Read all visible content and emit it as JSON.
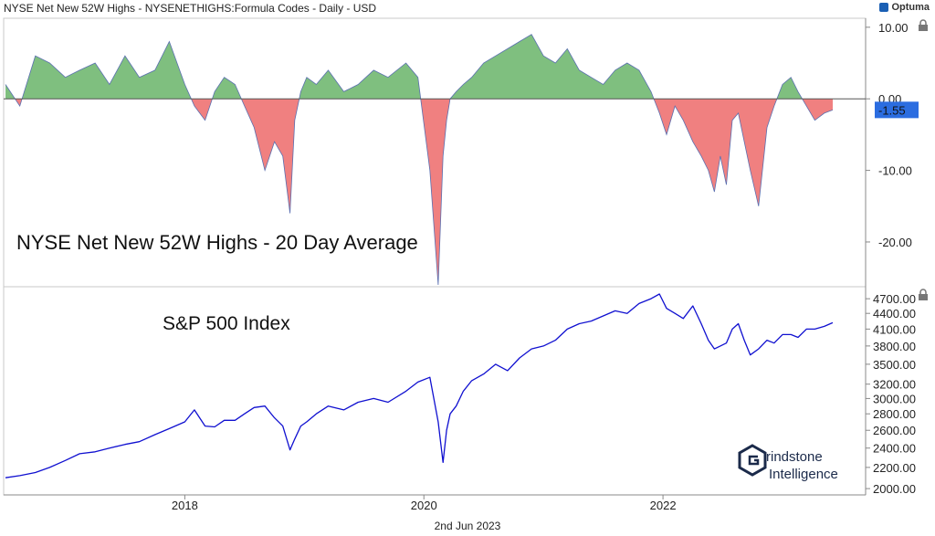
{
  "header": {
    "title": "NYSE Net New 52W Highs - NYSENETHIGHS:Formula Codes - Daily - USD",
    "brand": "Optuma"
  },
  "footer": {
    "date": "2nd Jun 2023"
  },
  "watermark": {
    "line1": "rindstone",
    "line2": "Intelligence"
  },
  "colors": {
    "positive_fill": "#7fbf7f",
    "negative_fill": "#f08080",
    "sp_line": "#1010d0",
    "last_value_bg": "#2b6de0"
  },
  "chart_data": [
    {
      "type": "area",
      "title": "NYSE Net New 52W Highs - 20 Day Average",
      "yticks": [
        "10.00",
        "0.00",
        "-10.00",
        "-20.00"
      ],
      "ytick_values": [
        10,
        0,
        -10,
        -20
      ],
      "ylim": [
        -26,
        11
      ],
      "last_value": "-1.55",
      "x": [
        2016.5,
        2016.62,
        2016.75,
        2016.87,
        2017.0,
        2017.12,
        2017.25,
        2017.37,
        2017.5,
        2017.62,
        2017.75,
        2017.87,
        2018.0,
        2018.08,
        2018.17,
        2018.25,
        2018.33,
        2018.42,
        2018.5,
        2018.58,
        2018.67,
        2018.75,
        2018.82,
        2018.88,
        2018.92,
        2018.97,
        2019.02,
        2019.1,
        2019.2,
        2019.33,
        2019.45,
        2019.58,
        2019.7,
        2019.85,
        2019.95,
        2020.05,
        2020.12,
        2020.16,
        2020.19,
        2020.22,
        2020.27,
        2020.33,
        2020.4,
        2020.5,
        2020.6,
        2020.7,
        2020.8,
        2020.9,
        2021.0,
        2021.1,
        2021.2,
        2021.3,
        2021.4,
        2021.5,
        2021.6,
        2021.7,
        2021.8,
        2021.9,
        2021.97,
        2022.03,
        2022.1,
        2022.17,
        2022.25,
        2022.32,
        2022.38,
        2022.43,
        2022.48,
        2022.53,
        2022.58,
        2022.63,
        2022.68,
        2022.73,
        2022.8,
        2022.87,
        2022.93,
        2023.0,
        2023.07,
        2023.13,
        2023.2,
        2023.27,
        2023.35,
        2023.42
      ],
      "y": [
        2,
        -1,
        6,
        5,
        3,
        4,
        5,
        2,
        6,
        3,
        4,
        8,
        2,
        -1,
        -3,
        1,
        3,
        2,
        -1,
        -4,
        -10,
        -6,
        -8,
        -16,
        -3,
        1,
        3,
        2,
        4,
        1,
        2,
        4,
        3,
        5,
        3,
        -10,
        -26,
        -8,
        -3,
        0,
        1,
        2,
        3,
        5,
        6,
        7,
        8,
        9,
        6,
        5,
        7,
        4,
        3,
        2,
        4,
        5,
        4,
        1,
        -2,
        -5,
        -1,
        -3,
        -6,
        -8,
        -10,
        -13,
        -8,
        -12,
        -3,
        -2,
        -6,
        -10,
        -15,
        -4,
        -1,
        2,
        3,
        1,
        -1,
        -3,
        -2,
        -1.55
      ],
      "legend": "NYSE Net New 52W Highs - 20 Day Average"
    },
    {
      "type": "line",
      "title": "S&P 500 Index",
      "yticks": [
        "4700.00",
        "4400.00",
        "4100.00",
        "3800.00",
        "3500.00",
        "3200.00",
        "3000.00",
        "2800.00",
        "2600.00",
        "2400.00",
        "2200.00",
        "2000.00"
      ],
      "ytick_values": [
        4700,
        4400,
        4100,
        3800,
        3500,
        3200,
        3000,
        2800,
        2600,
        2400,
        2200,
        2000
      ],
      "log_scale": true,
      "ylim": [
        1960,
        4880
      ],
      "x": [
        2016.5,
        2016.62,
        2016.75,
        2016.87,
        2017.0,
        2017.12,
        2017.25,
        2017.37,
        2017.5,
        2017.62,
        2017.75,
        2017.87,
        2018.0,
        2018.08,
        2018.17,
        2018.25,
        2018.33,
        2018.42,
        2018.5,
        2018.58,
        2018.67,
        2018.75,
        2018.82,
        2018.88,
        2018.92,
        2018.97,
        2019.02,
        2019.1,
        2019.2,
        2019.33,
        2019.45,
        2019.58,
        2019.7,
        2019.85,
        2019.95,
        2020.05,
        2020.12,
        2020.16,
        2020.19,
        2020.22,
        2020.27,
        2020.33,
        2020.4,
        2020.5,
        2020.6,
        2020.7,
        2020.8,
        2020.9,
        2021.0,
        2021.1,
        2021.2,
        2021.3,
        2021.4,
        2021.5,
        2021.6,
        2021.7,
        2021.8,
        2021.9,
        2021.97,
        2022.03,
        2022.1,
        2022.17,
        2022.25,
        2022.32,
        2022.38,
        2022.43,
        2022.48,
        2022.53,
        2022.58,
        2022.63,
        2022.68,
        2022.73,
        2022.8,
        2022.87,
        2022.93,
        2023.0,
        2023.07,
        2023.13,
        2023.2,
        2023.27,
        2023.35,
        2023.42
      ],
      "y": [
        2100,
        2120,
        2150,
        2200,
        2270,
        2340,
        2360,
        2400,
        2440,
        2470,
        2550,
        2620,
        2700,
        2850,
        2650,
        2640,
        2720,
        2720,
        2800,
        2880,
        2900,
        2750,
        2650,
        2380,
        2500,
        2650,
        2700,
        2800,
        2900,
        2850,
        2950,
        3000,
        2950,
        3100,
        3230,
        3300,
        2700,
        2250,
        2600,
        2800,
        2900,
        3100,
        3250,
        3350,
        3500,
        3400,
        3600,
        3750,
        3800,
        3900,
        4100,
        4200,
        4250,
        4350,
        4450,
        4400,
        4600,
        4700,
        4800,
        4500,
        4400,
        4300,
        4550,
        4200,
        3900,
        3750,
        3800,
        3850,
        4100,
        4200,
        3900,
        3650,
        3750,
        3900,
        3850,
        4000,
        4000,
        3950,
        4100,
        4100,
        4150,
        4220
      ],
      "legend": "S&P 500 Index"
    }
  ],
  "xaxis": {
    "labels": [
      "2018",
      "2020",
      "2022"
    ],
    "values": [
      2018,
      2020,
      2022
    ]
  }
}
